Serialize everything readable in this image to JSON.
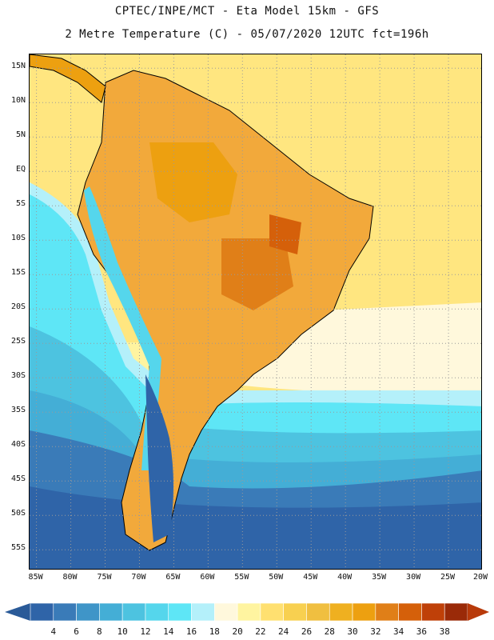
{
  "header": {
    "line1": "CPTEC/INPE/MCT -  Eta Model 15km - GFS",
    "line2": "2 Metre Temperature (C) - 05/07/2020 12UTC fct=196h"
  },
  "map": {
    "lat_labels": [
      "15N",
      "10N",
      "5N",
      "EQ",
      "5S",
      "10S",
      "15S",
      "20S",
      "25S",
      "30S",
      "35S",
      "40S",
      "45S",
      "50S",
      "55S"
    ],
    "lat_values": [
      15,
      10,
      5,
      0,
      -5,
      -10,
      -15,
      -20,
      -25,
      -30,
      -35,
      -40,
      -45,
      -50,
      -55
    ],
    "lon_labels": [
      "85W",
      "80W",
      "75W",
      "70W",
      "65W",
      "60W",
      "55W",
      "50W",
      "45W",
      "40W",
      "35W",
      "30W",
      "25W",
      "20W"
    ],
    "lon_values": [
      -85,
      -80,
      -75,
      -70,
      -65,
      -60,
      -55,
      -50,
      -45,
      -40,
      -35,
      -30,
      -25,
      -20
    ],
    "lat_range": [
      -58,
      17
    ],
    "lon_range": [
      -86,
      -20
    ],
    "ocean_color": "#ffe680",
    "land_color": "#f2a93b"
  },
  "colorbar": {
    "labels": [
      "4",
      "6",
      "8",
      "10",
      "12",
      "14",
      "16",
      "18",
      "20",
      "22",
      "24",
      "26",
      "28",
      "30",
      "32",
      "34",
      "36",
      "38"
    ],
    "values": [
      4,
      6,
      8,
      10,
      12,
      14,
      16,
      18,
      20,
      22,
      24,
      26,
      28,
      30,
      32,
      34,
      36,
      38
    ],
    "colors": [
      "#2f64a8",
      "#3a7bb8",
      "#3f95c8",
      "#44aed6",
      "#4dc3e0",
      "#55d6ec",
      "#5ee6f6",
      "#b4f0fa",
      "#fff8dc",
      "#fff4a0",
      "#ffe070",
      "#f8d050",
      "#f0bf40",
      "#efb020",
      "#eda010",
      "#e07f18",
      "#d5600a",
      "#bf4008",
      "#9a2a08"
    ],
    "low_color": "#2a5a98",
    "high_color": "#b83a0a"
  }
}
